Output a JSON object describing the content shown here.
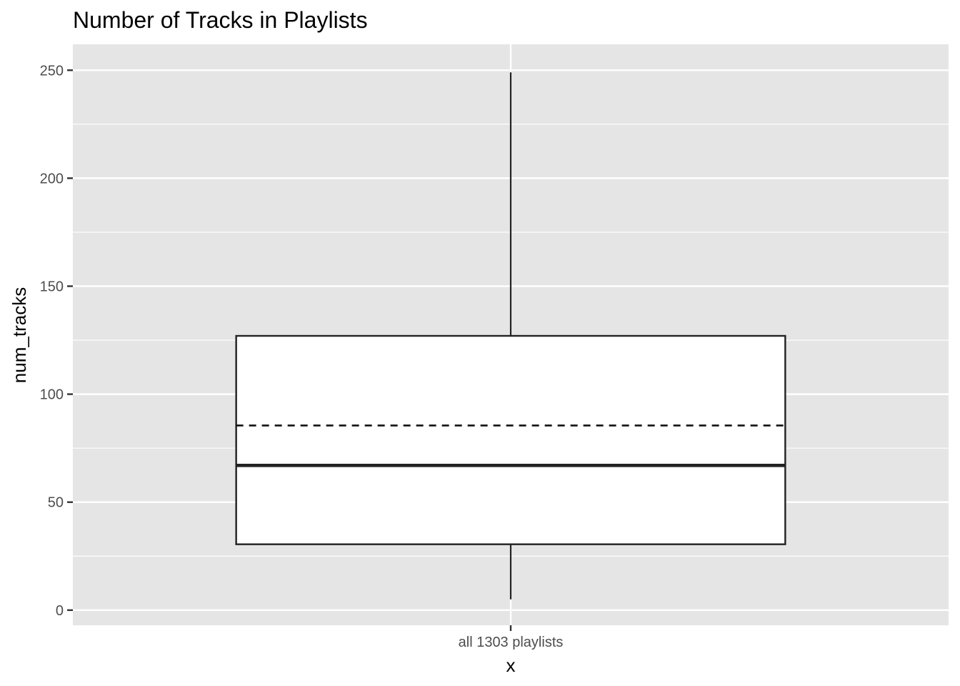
{
  "chart_data": {
    "type": "box",
    "title": "Number of Tracks in Playlists",
    "xlabel": "x",
    "ylabel": "num_tracks",
    "categories": [
      "all 1303 playlists"
    ],
    "ylim": [
      -7,
      262
    ],
    "yticks": [
      0,
      50,
      100,
      150,
      200,
      250
    ],
    "boxes": [
      {
        "category": "all 1303 playlists",
        "whisker_low": 5,
        "q1": 30.5,
        "median": 67,
        "q3": 127,
        "whisker_high": 249,
        "mean": 85.5
      }
    ],
    "grid": true,
    "colors": {
      "panel": "#e5e5e5",
      "grid": "#ffffff",
      "box_fill": "#ffffff",
      "box_line": "#222222"
    }
  }
}
